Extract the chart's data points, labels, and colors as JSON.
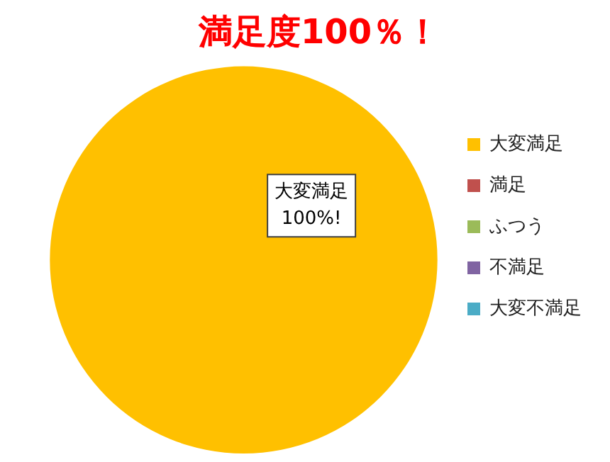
{
  "chart_data": {
    "type": "pie",
    "title": "満足度100％！",
    "categories": [
      "大変満足",
      "満足",
      "ふつう",
      "不満足",
      "大変不満足"
    ],
    "values": [
      100,
      0,
      0,
      0,
      0
    ],
    "colors": [
      "#ffc000",
      "#c0504d",
      "#9bbb59",
      "#8064a2",
      "#4bacc6"
    ],
    "value_labels": [
      "大変満足\n100%!",
      null,
      null,
      null,
      null
    ],
    "legend": "right"
  }
}
